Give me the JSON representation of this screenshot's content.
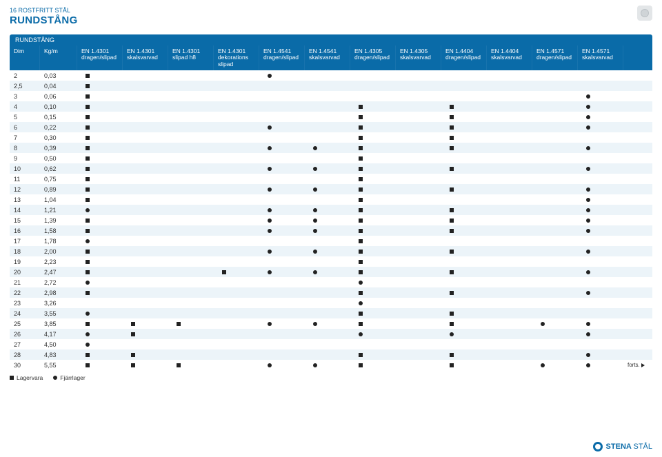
{
  "crumb": "16 ROSTFRITT STÅL",
  "title": "RUNDSTÅNG",
  "section_title": "RUNDSTÅNG",
  "columns": [
    {
      "label": "Dim"
    },
    {
      "label": "Kg/m"
    },
    {
      "label": "EN 1.4301\ndragen/slipad"
    },
    {
      "label": "EN 1.4301\nskalsvarvad"
    },
    {
      "label": "EN 1.4301\nslipad h8"
    },
    {
      "label": "EN 1.4301\ndekorations\nslipad"
    },
    {
      "label": "EN 1.4541\ndragen/slipad"
    },
    {
      "label": "EN 1.4541\nskalsvarvad"
    },
    {
      "label": "EN 1.4305\ndragen/slipad"
    },
    {
      "label": "EN 1.4305\nskalsvarvad"
    },
    {
      "label": "EN 1.4404\ndragen/slipad"
    },
    {
      "label": "EN 1.4404\nskalsvarvad"
    },
    {
      "label": "EN 1.4571\ndragen/slipad"
    },
    {
      "label": "EN 1.4571\nskalsvarvad"
    }
  ],
  "rows": [
    {
      "dim": "2",
      "kg": "0,03",
      "m": [
        "s",
        "",
        "",
        "",
        "c",
        "",
        "",
        "",
        "",
        "",
        "",
        ""
      ]
    },
    {
      "dim": "2,5",
      "kg": "0,04",
      "m": [
        "s",
        "",
        "",
        "",
        "",
        "",
        "",
        "",
        "",
        "",
        "",
        ""
      ]
    },
    {
      "dim": "3",
      "kg": "0,06",
      "m": [
        "s",
        "",
        "",
        "",
        "",
        "",
        "",
        "",
        "",
        "",
        "",
        "c"
      ]
    },
    {
      "dim": "4",
      "kg": "0,10",
      "m": [
        "s",
        "",
        "",
        "",
        "",
        "",
        "s",
        "",
        "s",
        "",
        "",
        "c"
      ]
    },
    {
      "dim": "5",
      "kg": "0,15",
      "m": [
        "s",
        "",
        "",
        "",
        "",
        "",
        "s",
        "",
        "s",
        "",
        "",
        "c"
      ]
    },
    {
      "dim": "6",
      "kg": "0,22",
      "m": [
        "s",
        "",
        "",
        "",
        "c",
        "",
        "s",
        "",
        "s",
        "",
        "",
        "c"
      ]
    },
    {
      "dim": "7",
      "kg": "0,30",
      "m": [
        "s",
        "",
        "",
        "",
        "",
        "",
        "s",
        "",
        "s",
        "",
        "",
        ""
      ]
    },
    {
      "dim": "8",
      "kg": "0,39",
      "m": [
        "s",
        "",
        "",
        "",
        "c",
        "c",
        "s",
        "",
        "s",
        "",
        "",
        "c"
      ]
    },
    {
      "dim": "9",
      "kg": "0,50",
      "m": [
        "s",
        "",
        "",
        "",
        "",
        "",
        "s",
        "",
        "",
        "",
        "",
        ""
      ]
    },
    {
      "dim": "10",
      "kg": "0,62",
      "m": [
        "s",
        "",
        "",
        "",
        "c",
        "c",
        "s",
        "",
        "s",
        "",
        "",
        "c"
      ]
    },
    {
      "dim": "11",
      "kg": "0,75",
      "m": [
        "s",
        "",
        "",
        "",
        "",
        "",
        "s",
        "",
        "",
        "",
        "",
        ""
      ]
    },
    {
      "dim": "12",
      "kg": "0,89",
      "m": [
        "s",
        "",
        "",
        "",
        "c",
        "c",
        "s",
        "",
        "s",
        "",
        "",
        "c"
      ]
    },
    {
      "dim": "13",
      "kg": "1,04",
      "m": [
        "s",
        "",
        "",
        "",
        "",
        "",
        "s",
        "",
        "",
        "",
        "",
        "c"
      ]
    },
    {
      "dim": "14",
      "kg": "1,21",
      "m": [
        "c",
        "",
        "",
        "",
        "c",
        "c",
        "s",
        "",
        "s",
        "",
        "",
        "c"
      ]
    },
    {
      "dim": "15",
      "kg": "1,39",
      "m": [
        "s",
        "",
        "",
        "",
        "c",
        "c",
        "s",
        "",
        "s",
        "",
        "",
        "c"
      ]
    },
    {
      "dim": "16",
      "kg": "1,58",
      "m": [
        "s",
        "",
        "",
        "",
        "c",
        "c",
        "s",
        "",
        "s",
        "",
        "",
        "c"
      ]
    },
    {
      "dim": "17",
      "kg": "1,78",
      "m": [
        "c",
        "",
        "",
        "",
        "",
        "",
        "s",
        "",
        "",
        "",
        "",
        ""
      ]
    },
    {
      "dim": "18",
      "kg": "2,00",
      "m": [
        "s",
        "",
        "",
        "",
        "c",
        "c",
        "s",
        "",
        "s",
        "",
        "",
        "c"
      ]
    },
    {
      "dim": "19",
      "kg": "2,23",
      "m": [
        "s",
        "",
        "",
        "",
        "",
        "",
        "s",
        "",
        "",
        "",
        "",
        ""
      ]
    },
    {
      "dim": "20",
      "kg": "2,47",
      "m": [
        "s",
        "",
        "",
        "s",
        "c",
        "c",
        "s",
        "",
        "s",
        "",
        "",
        "c"
      ]
    },
    {
      "dim": "21",
      "kg": "2,72",
      "m": [
        "c",
        "",
        "",
        "",
        "",
        "",
        "c",
        "",
        "",
        "",
        "",
        ""
      ]
    },
    {
      "dim": "22",
      "kg": "2,98",
      "m": [
        "s",
        "",
        "",
        "",
        "",
        "",
        "s",
        "",
        "s",
        "",
        "",
        "c"
      ]
    },
    {
      "dim": "23",
      "kg": "3,26",
      "m": [
        "",
        "",
        "",
        "",
        "",
        "",
        "c",
        "",
        "",
        "",
        "",
        ""
      ]
    },
    {
      "dim": "24",
      "kg": "3,55",
      "m": [
        "c",
        "",
        "",
        "",
        "",
        "",
        "s",
        "",
        "s",
        "",
        "",
        ""
      ]
    },
    {
      "dim": "25",
      "kg": "3,85",
      "m": [
        "s",
        "s",
        "s",
        "",
        "c",
        "c",
        "s",
        "",
        "s",
        "",
        "c",
        "c"
      ]
    },
    {
      "dim": "26",
      "kg": "4,17",
      "m": [
        "c",
        "s",
        "",
        "",
        "",
        "",
        "c",
        "",
        "c",
        "",
        "",
        "c"
      ]
    },
    {
      "dim": "27",
      "kg": "4,50",
      "m": [
        "c",
        "",
        "",
        "",
        "",
        "",
        "",
        "",
        "",
        "",
        "",
        ""
      ]
    },
    {
      "dim": "28",
      "kg": "4,83",
      "m": [
        "s",
        "s",
        "",
        "",
        "",
        "",
        "s",
        "",
        "s",
        "",
        "",
        "c"
      ]
    },
    {
      "dim": "30",
      "kg": "5,55",
      "m": [
        "s",
        "s",
        "s",
        "",
        "c",
        "c",
        "s",
        "",
        "s",
        "",
        "c",
        "c"
      ],
      "note": "forts."
    }
  ],
  "legend": {
    "sq": "Lagervara",
    "ci": "Fjärrlager"
  },
  "logo": {
    "brand": "STENA",
    "sub": "STÅL"
  }
}
